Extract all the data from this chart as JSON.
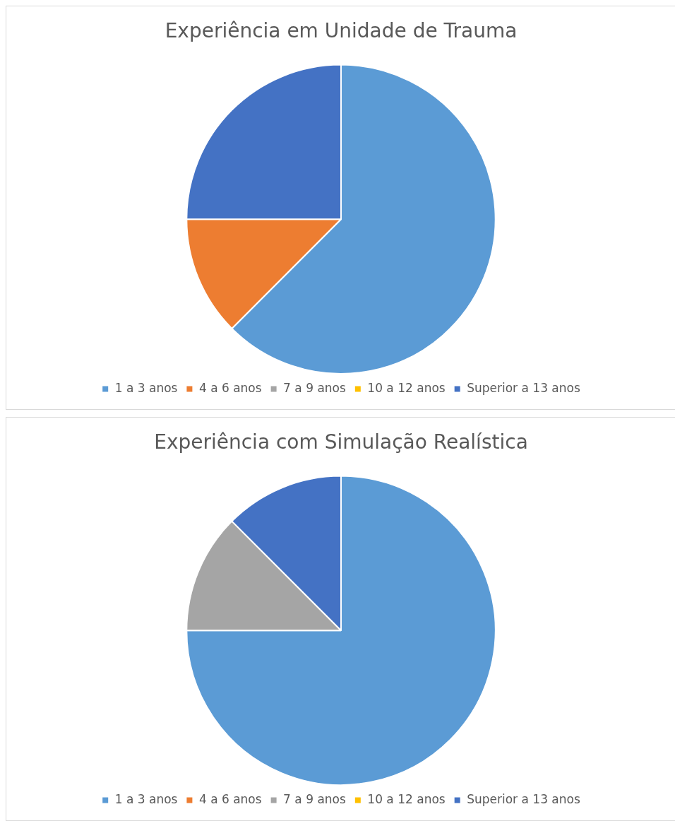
{
  "chart_data": [
    {
      "type": "pie",
      "title": "Experiência em Unidade de Trauma",
      "categories": [
        "1 a 3 anos",
        "4 a 6 anos",
        "7 a 9 anos",
        "10 a 12 anos",
        "Superior a 13 anos"
      ],
      "values": [
        62.5,
        12.5,
        0,
        0,
        25
      ],
      "colors": [
        "#5b9bd5",
        "#ed7d31",
        "#a5a5a5",
        "#ffc000",
        "#4472c4"
      ],
      "legend": "bottom"
    },
    {
      "type": "pie",
      "title": "Experiência com Simulação Realística",
      "categories": [
        "1 a 3 anos",
        "4 a 6 anos",
        "7 a 9 anos",
        "10 a 12 anos",
        "Superior a 13 anos"
      ],
      "values": [
        75,
        0,
        12.5,
        0,
        12.5
      ],
      "colors": [
        "#5b9bd5",
        "#ed7d31",
        "#a5a5a5",
        "#ffc000",
        "#4472c4"
      ],
      "legend": "bottom"
    }
  ]
}
